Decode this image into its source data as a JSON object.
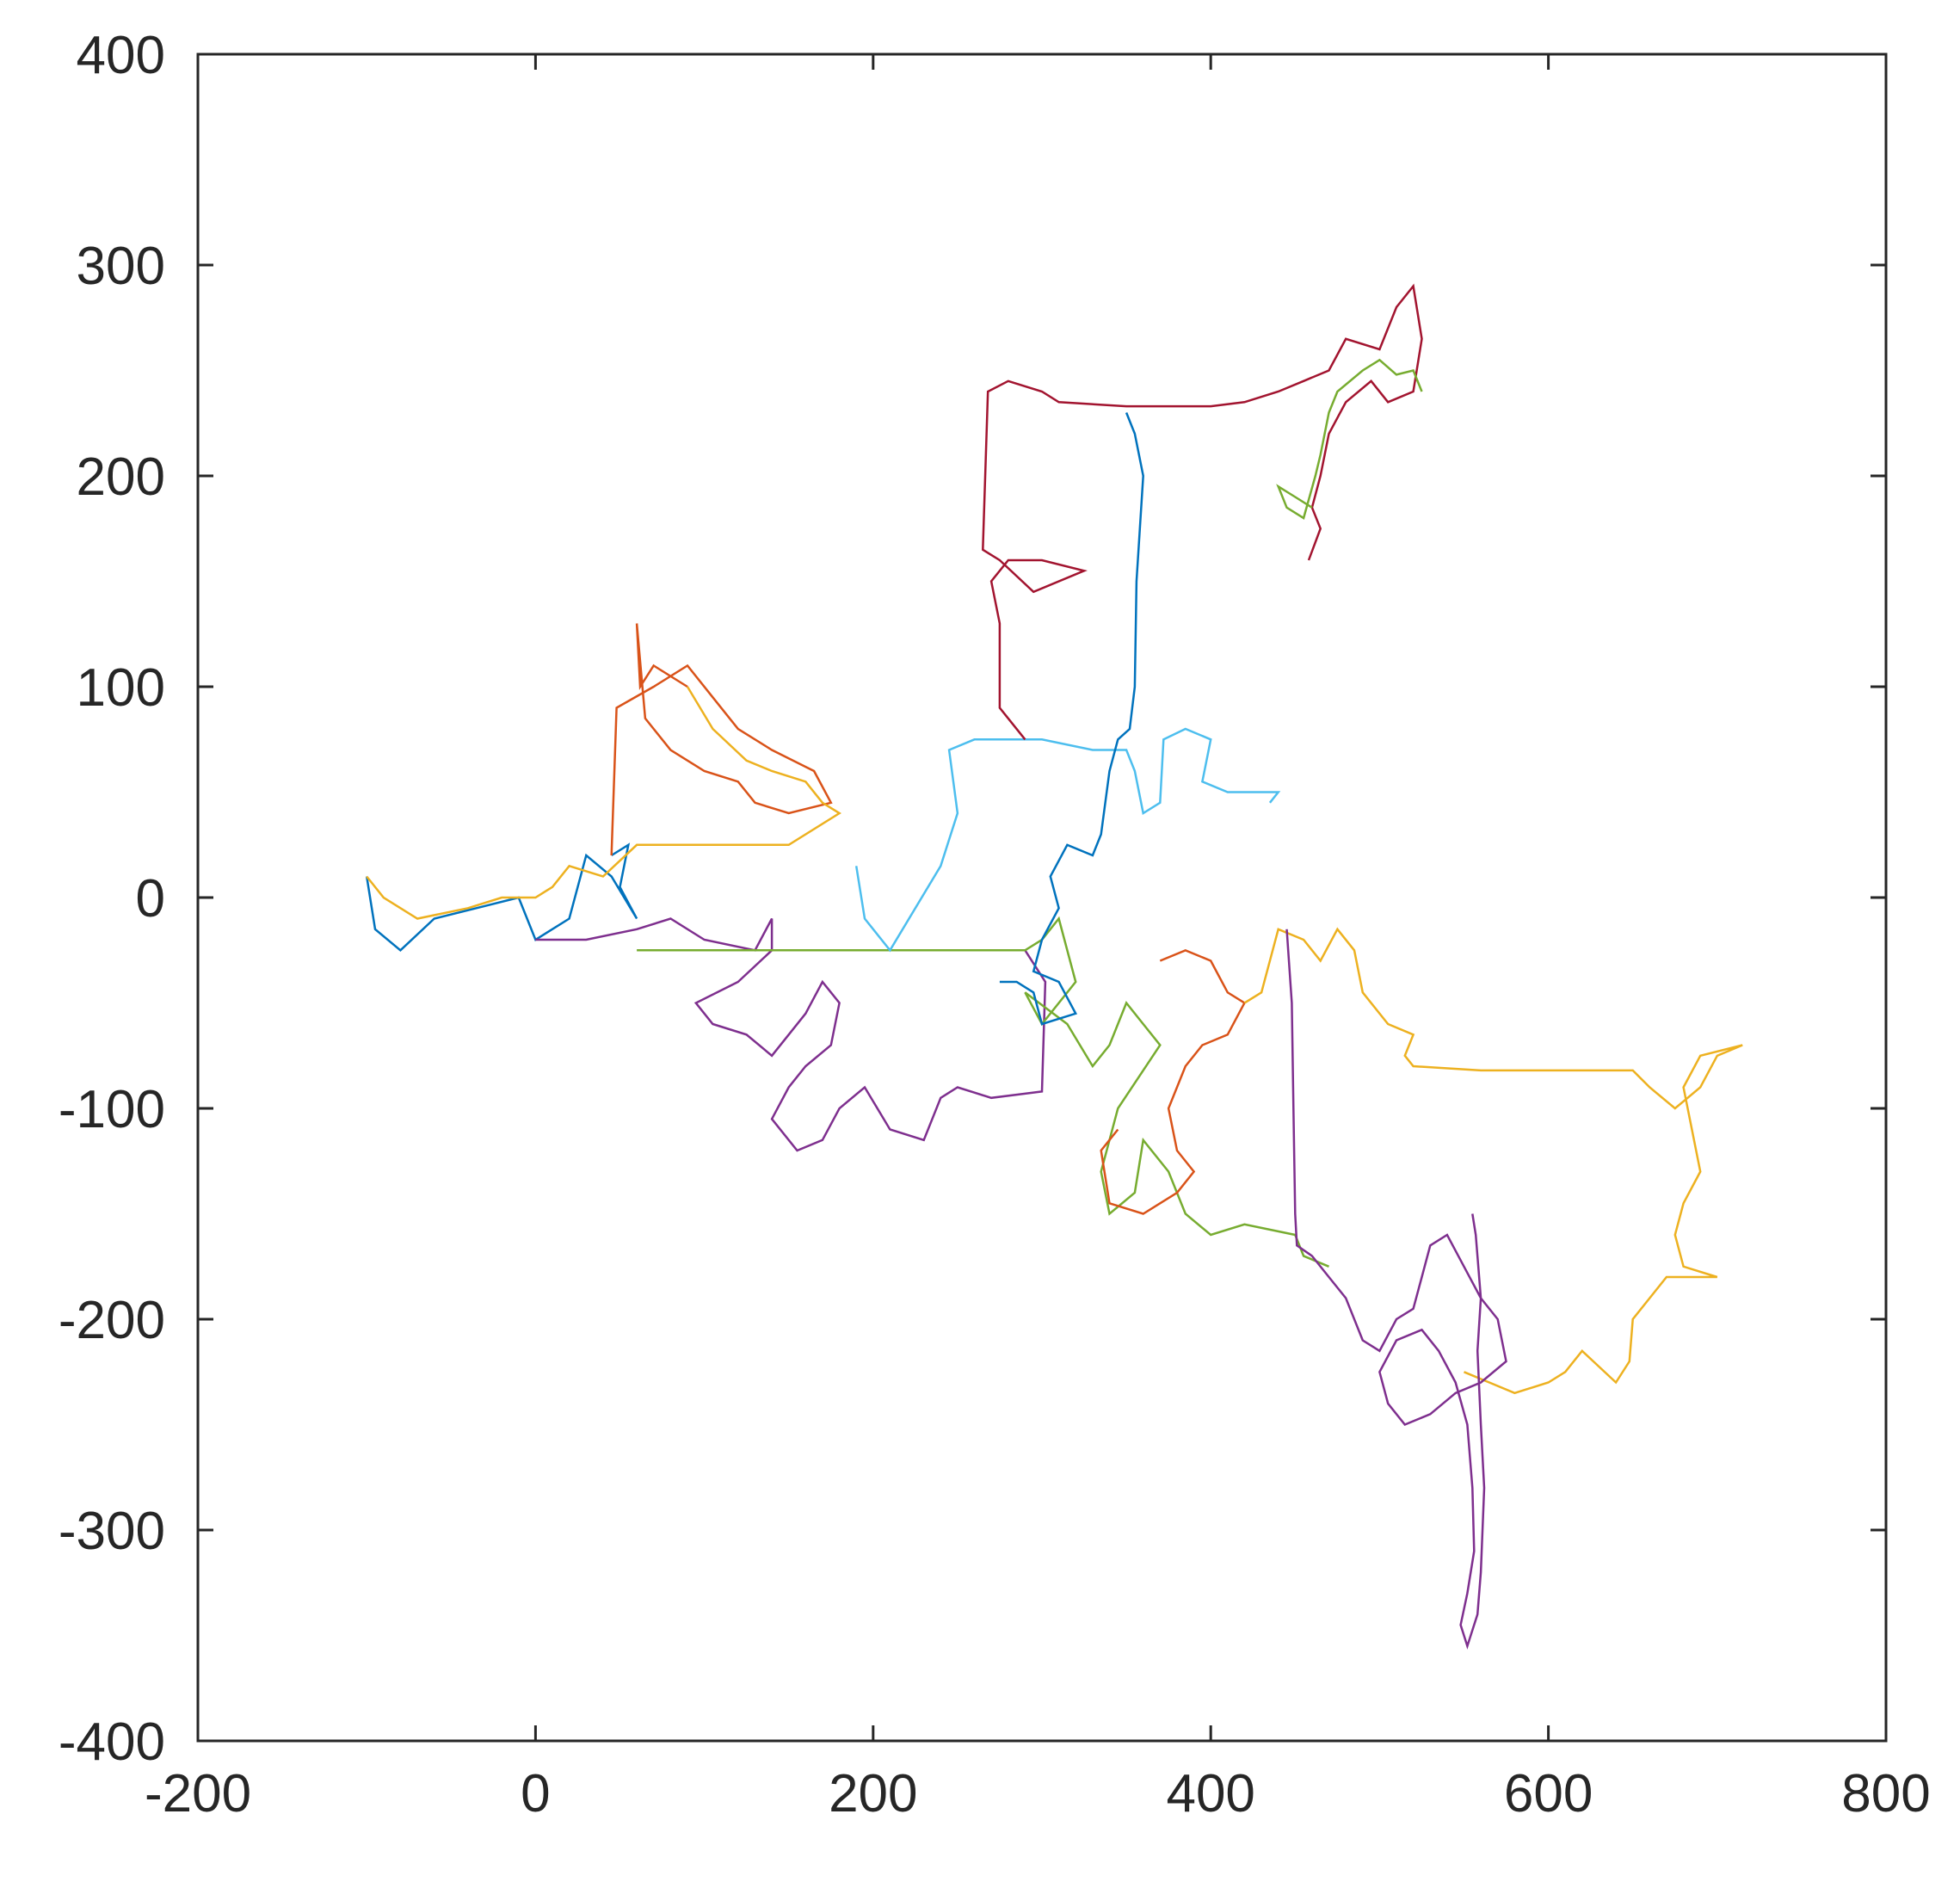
{
  "chart_data": {
    "type": "line",
    "title": "",
    "xlabel": "",
    "ylabel": "",
    "xlim": [
      -200,
      800
    ],
    "ylim": [
      -400,
      400
    ],
    "xticks": [
      -200,
      0,
      200,
      400,
      600,
      800
    ],
    "yticks": [
      -400,
      -300,
      -200,
      -100,
      0,
      100,
      200,
      300,
      400
    ],
    "xtick_labels": [
      "-200",
      "0",
      "200",
      "400",
      "600",
      "800"
    ],
    "ytick_labels": [
      "-400",
      "-300",
      "-200",
      "-100",
      "0",
      "100",
      "200",
      "300",
      "400"
    ],
    "grid": false,
    "legend": "none",
    "colors": [
      "#0072BD",
      "#D95319",
      "#EDB120",
      "#7E2F8E",
      "#77AC30",
      "#4DBEEE",
      "#A2142F"
    ],
    "series": [
      {
        "values": [
          [
            -100,
            10
          ],
          [
            -95,
            -15
          ],
          [
            -80,
            -25
          ],
          [
            -60,
            -10
          ],
          [
            -35,
            -5
          ],
          [
            -10,
            0
          ],
          [
            0,
            -20
          ],
          [
            20,
            -10
          ],
          [
            30,
            20
          ],
          [
            45,
            10
          ],
          [
            60,
            -10
          ],
          [
            50,
            5
          ],
          [
            55,
            25
          ],
          [
            45,
            20
          ]
        ]
      },
      {
        "values": [
          [
            45,
            20
          ],
          [
            48,
            90
          ],
          [
            70,
            100
          ],
          [
            90,
            110
          ],
          [
            105,
            95
          ],
          [
            120,
            80
          ],
          [
            140,
            70
          ],
          [
            165,
            60
          ],
          [
            175,
            45
          ],
          [
            150,
            40
          ],
          [
            130,
            45
          ],
          [
            120,
            55
          ],
          [
            100,
            60
          ],
          [
            80,
            70
          ],
          [
            65,
            85
          ],
          [
            60,
            130
          ],
          [
            62,
            100
          ],
          [
            70,
            110
          ],
          [
            90,
            100
          ]
        ]
      },
      {
        "values": [
          [
            90,
            100
          ],
          [
            105,
            80
          ],
          [
            125,
            65
          ],
          [
            140,
            60
          ],
          [
            160,
            55
          ],
          [
            170,
            45
          ],
          [
            180,
            40
          ],
          [
            150,
            25
          ],
          [
            120,
            25
          ],
          [
            60,
            25
          ],
          [
            40,
            10
          ],
          [
            20,
            15
          ],
          [
            10,
            5
          ],
          [
            0,
            0
          ],
          [
            -20,
            0
          ],
          [
            -40,
            -5
          ],
          [
            -70,
            -10
          ],
          [
            -90,
            0
          ],
          [
            -100,
            10
          ]
        ]
      },
      {
        "values": [
          [
            0,
            -20
          ],
          [
            30,
            -20
          ],
          [
            60,
            -15
          ],
          [
            80,
            -10
          ],
          [
            100,
            -20
          ],
          [
            130,
            -25
          ],
          [
            140,
            -10
          ],
          [
            140,
            -25
          ],
          [
            120,
            -40
          ],
          [
            95,
            -50
          ],
          [
            105,
            -60
          ],
          [
            125,
            -65
          ],
          [
            140,
            -75
          ],
          [
            150,
            -65
          ],
          [
            160,
            -55
          ],
          [
            170,
            -40
          ],
          [
            180,
            -50
          ],
          [
            175,
            -70
          ],
          [
            160,
            -80
          ],
          [
            150,
            -90
          ],
          [
            140,
            -105
          ],
          [
            155,
            -120
          ],
          [
            170,
            -115
          ],
          [
            180,
            -100
          ],
          [
            195,
            -90
          ],
          [
            210,
            -110
          ],
          [
            230,
            -115
          ],
          [
            240,
            -95
          ],
          [
            250,
            -90
          ],
          [
            270,
            -95
          ],
          [
            300,
            -92
          ],
          [
            302,
            -40
          ],
          [
            290,
            -25
          ]
        ]
      },
      {
        "values": [
          [
            60,
            -25
          ],
          [
            150,
            -25
          ],
          [
            200,
            -25
          ],
          [
            250,
            -25
          ],
          [
            290,
            -25
          ],
          [
            300,
            -20
          ],
          [
            310,
            -10
          ],
          [
            320,
            -40
          ],
          [
            300,
            -60
          ],
          [
            290,
            -45
          ],
          [
            315,
            -60
          ],
          [
            330,
            -80
          ],
          [
            340,
            -70
          ],
          [
            350,
            -50
          ],
          [
            360,
            -60
          ],
          [
            370,
            -70
          ],
          [
            345,
            -100
          ],
          [
            335,
            -130
          ],
          [
            340,
            -150
          ],
          [
            355,
            -140
          ],
          [
            360,
            -115
          ],
          [
            375,
            -130
          ],
          [
            385,
            -150
          ],
          [
            400,
            -160
          ],
          [
            420,
            -155
          ],
          [
            450,
            -160
          ],
          [
            455,
            -170
          ],
          [
            470,
            -175
          ]
        ]
      },
      {
        "values": [
          [
            190,
            15
          ],
          [
            195,
            -10
          ],
          [
            210,
            -25
          ],
          [
            240,
            15
          ],
          [
            250,
            40
          ],
          [
            245,
            70
          ],
          [
            260,
            75
          ],
          [
            300,
            75
          ],
          [
            330,
            70
          ],
          [
            350,
            70
          ],
          [
            355,
            60
          ],
          [
            360,
            40
          ],
          [
            370,
            45
          ],
          [
            372,
            75
          ],
          [
            385,
            80
          ],
          [
            400,
            75
          ],
          [
            395,
            55
          ],
          [
            410,
            50
          ],
          [
            440,
            50
          ],
          [
            435,
            45
          ]
        ]
      },
      {
        "values": [
          [
            290,
            75
          ],
          [
            275,
            90
          ],
          [
            275,
            130
          ],
          [
            270,
            150
          ],
          [
            280,
            160
          ],
          [
            300,
            160
          ],
          [
            325,
            155
          ],
          [
            295,
            145
          ],
          [
            275,
            160
          ],
          [
            265,
            165
          ],
          [
            268,
            240
          ],
          [
            280,
            245
          ],
          [
            300,
            240
          ],
          [
            310,
            235
          ],
          [
            350,
            233
          ],
          [
            400,
            233
          ],
          [
            420,
            235
          ],
          [
            440,
            240
          ],
          [
            455,
            245
          ],
          [
            470,
            250
          ],
          [
            480,
            265
          ],
          [
            500,
            260
          ],
          [
            510,
            280
          ],
          [
            520,
            290
          ],
          [
            525,
            265
          ],
          [
            520,
            240
          ],
          [
            505,
            235
          ],
          [
            495,
            245
          ],
          [
            480,
            235
          ],
          [
            470,
            220
          ],
          [
            465,
            200
          ],
          [
            460,
            185
          ],
          [
            465,
            175
          ],
          [
            458,
            160
          ]
        ]
      },
      {
        "values": [
          [
            350,
            230
          ],
          [
            355,
            220
          ],
          [
            360,
            200
          ],
          [
            356,
            150
          ],
          [
            355,
            100
          ],
          [
            352,
            80
          ],
          [
            345,
            75
          ],
          [
            340,
            60
          ],
          [
            335,
            30
          ],
          [
            330,
            20
          ],
          [
            315,
            25
          ],
          [
            305,
            10
          ],
          [
            310,
            -5
          ],
          [
            300,
            -20
          ],
          [
            295,
            -35
          ],
          [
            310,
            -40
          ],
          [
            320,
            -55
          ],
          [
            300,
            -60
          ],
          [
            295,
            -45
          ],
          [
            285,
            -40
          ],
          [
            275,
            -40
          ]
        ]
      },
      {
        "values": [
          [
            370,
            -30
          ],
          [
            385,
            -25
          ],
          [
            400,
            -30
          ],
          [
            410,
            -45
          ],
          [
            420,
            -50
          ],
          [
            410,
            -65
          ],
          [
            395,
            -70
          ],
          [
            385,
            -80
          ],
          [
            375,
            -100
          ],
          [
            380,
            -120
          ],
          [
            390,
            -130
          ],
          [
            380,
            -140
          ],
          [
            370,
            -145
          ],
          [
            360,
            -150
          ],
          [
            340,
            -145
          ],
          [
            335,
            -120
          ],
          [
            345,
            -110
          ]
        ]
      },
      {
        "values": [
          [
            420,
            -50
          ],
          [
            430,
            -45
          ],
          [
            440,
            -15
          ],
          [
            455,
            -20
          ],
          [
            465,
            -30
          ],
          [
            475,
            -15
          ],
          [
            485,
            -25
          ],
          [
            490,
            -45
          ],
          [
            505,
            -60
          ],
          [
            520,
            -65
          ],
          [
            515,
            -75
          ],
          [
            520,
            -80
          ],
          [
            560,
            -82
          ],
          [
            600,
            -82
          ],
          [
            650,
            -82
          ],
          [
            660,
            -90
          ],
          [
            675,
            -100
          ],
          [
            690,
            -90
          ],
          [
            700,
            -75
          ],
          [
            715,
            -70
          ],
          [
            690,
            -75
          ],
          [
            680,
            -90
          ],
          [
            685,
            -110
          ],
          [
            690,
            -130
          ],
          [
            680,
            -145
          ],
          [
            675,
            -160
          ],
          [
            680,
            -175
          ],
          [
            700,
            -180
          ],
          [
            670,
            -180
          ],
          [
            660,
            -190
          ],
          [
            650,
            -200
          ],
          [
            648,
            -220
          ],
          [
            640,
            -230
          ],
          [
            620,
            -215
          ],
          [
            610,
            -225
          ],
          [
            600,
            -230
          ],
          [
            580,
            -235
          ],
          [
            565,
            -230
          ],
          [
            550,
            -225
          ]
        ]
      },
      {
        "values": [
          [
            445,
            -15
          ],
          [
            448,
            -50
          ],
          [
            449,
            -100
          ],
          [
            450,
            -150
          ],
          [
            451,
            -165
          ],
          [
            460,
            -170
          ],
          [
            470,
            -180
          ],
          [
            480,
            -190
          ],
          [
            490,
            -210
          ],
          [
            500,
            -215
          ],
          [
            510,
            -200
          ],
          [
            520,
            -195
          ],
          [
            525,
            -180
          ],
          [
            530,
            -165
          ],
          [
            540,
            -160
          ],
          [
            550,
            -175
          ],
          [
            560,
            -190
          ],
          [
            570,
            -200
          ],
          [
            575,
            -220
          ],
          [
            560,
            -230
          ],
          [
            545,
            -235
          ],
          [
            530,
            -245
          ],
          [
            515,
            -250
          ],
          [
            505,
            -240
          ],
          [
            500,
            -225
          ],
          [
            510,
            -210
          ],
          [
            525,
            -205
          ],
          [
            535,
            -215
          ],
          [
            545,
            -230
          ],
          [
            552,
            -250
          ],
          [
            555,
            -280
          ],
          [
            556,
            -310
          ],
          [
            552,
            -330
          ],
          [
            548,
            -345
          ],
          [
            552,
            -355
          ],
          [
            558,
            -340
          ],
          [
            560,
            -320
          ],
          [
            562,
            -280
          ],
          [
            560,
            -250
          ],
          [
            558,
            -215
          ],
          [
            560,
            -190
          ],
          [
            557,
            -160
          ],
          [
            555,
            -150
          ]
        ]
      },
      {
        "values": [
          [
            460,
            185
          ],
          [
            450,
            190
          ],
          [
            440,
            195
          ],
          [
            445,
            185
          ],
          [
            455,
            180
          ],
          [
            462,
            200
          ],
          [
            465,
            210
          ],
          [
            470,
            230
          ],
          [
            475,
            240
          ],
          [
            490,
            250
          ],
          [
            500,
            255
          ],
          [
            510,
            248
          ],
          [
            520,
            250
          ],
          [
            525,
            240
          ]
        ]
      }
    ]
  }
}
